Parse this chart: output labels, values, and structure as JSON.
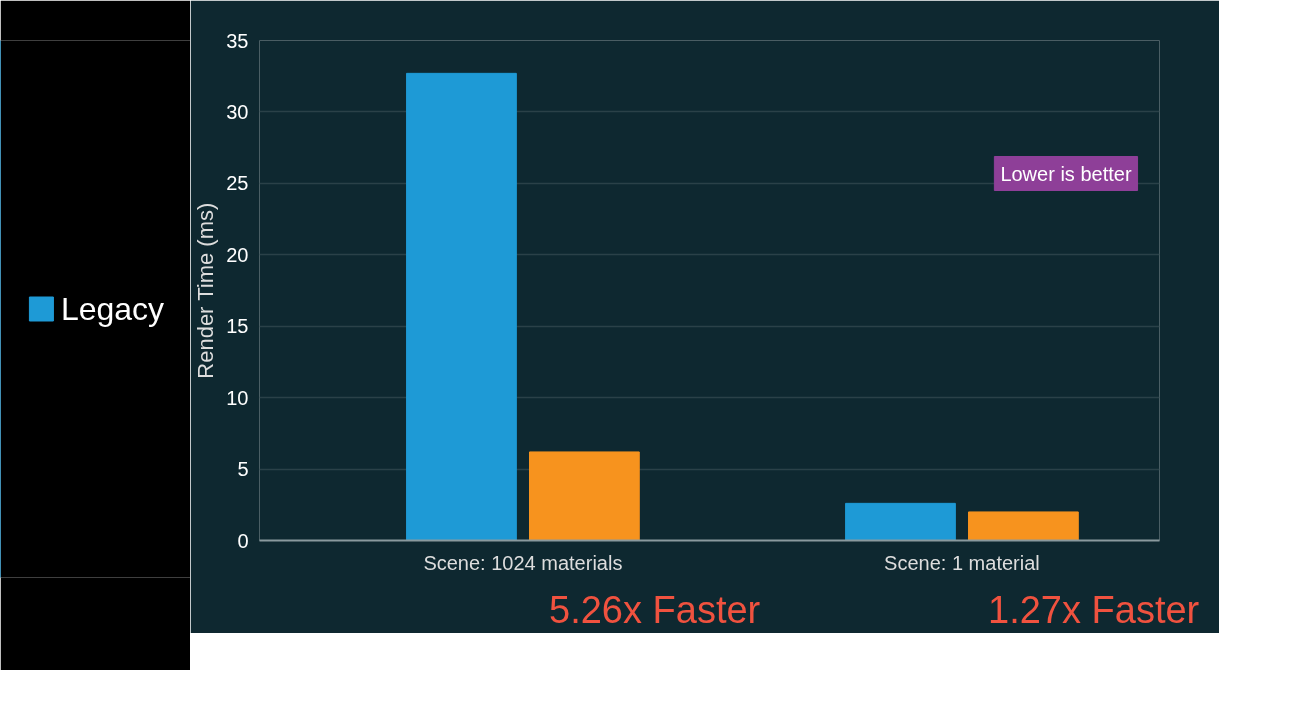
{
  "chart_data": {
    "type": "bar",
    "ylabel": "Render Time (ms)",
    "categories": [
      "Scene: 1024 materials",
      "Scene: 1 material"
    ],
    "series": [
      {
        "name": "Legacy",
        "color": "#1e9ad6",
        "values": [
          32.7,
          2.6
        ]
      },
      {
        "color": "#f7931e",
        "values": [
          6.2,
          2.0
        ]
      }
    ],
    "ylim": [
      0,
      35
    ],
    "yticks": [
      0,
      5,
      10,
      15,
      20,
      25,
      30,
      35
    ],
    "grid": "y",
    "legend": "left",
    "annotations": [
      "Lower is better",
      "5.26x Faster",
      "1.27x Faster"
    ]
  }
}
